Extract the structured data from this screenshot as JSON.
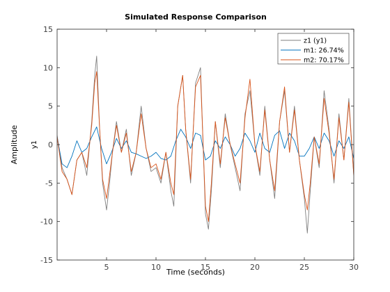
{
  "chart_data": {
    "type": "line",
    "title": "Simulated Response Comparison",
    "xlabel": "Time (seconds)",
    "ylabel": "Amplitude",
    "channel_label": "y1",
    "xlim": [
      0,
      30
    ],
    "ylim": [
      -15,
      15
    ],
    "xticks": [
      5,
      10,
      15,
      20,
      25,
      30
    ],
    "yticks": [
      -15,
      -10,
      -5,
      0,
      5,
      10,
      15
    ],
    "grid": false,
    "legend_position": "top-right",
    "series": [
      {
        "name": "z1 (y1)",
        "color": "#7f7f7f",
        "x": [
          0,
          0.5,
          1,
          1.5,
          2,
          2.5,
          3,
          3.5,
          3.8,
          4,
          4.3,
          4.6,
          5,
          5.3,
          5.6,
          6,
          6.5,
          7,
          7.5,
          8,
          8.5,
          9,
          9.5,
          10,
          10.5,
          11,
          11.5,
          11.8,
          12.2,
          12.7,
          13,
          13.5,
          14,
          14.5,
          15,
          15.3,
          15.6,
          16,
          16.5,
          17,
          17.5,
          18,
          18.5,
          19,
          19.5,
          20,
          20.5,
          21,
          21.5,
          22,
          22.5,
          23,
          23.5,
          24,
          24.5,
          25,
          25.3,
          25.6,
          26,
          26.5,
          27,
          27.5,
          28,
          28.5,
          29,
          29.5,
          30
        ],
        "y": [
          1.2,
          -3,
          -4.5,
          -6.5,
          -2,
          -1,
          -4,
          3,
          9,
          11.5,
          2,
          -5,
          -8.5,
          -5,
          -1,
          3,
          -1,
          2,
          -4,
          -1,
          5,
          -0.5,
          -3.5,
          -3,
          -5,
          -1,
          -6,
          -8,
          5,
          9,
          2,
          -5,
          8,
          10,
          -9,
          -11,
          -6,
          3,
          -3,
          4,
          0,
          -3,
          -6,
          4,
          7,
          0,
          -4,
          5,
          -2,
          -7,
          3,
          7,
          -1,
          5,
          -2,
          -7,
          -11.5,
          -6,
          1,
          -3,
          7,
          2,
          -5,
          4,
          -2,
          6,
          -4
        ]
      },
      {
        "name": "m1: 26.74%",
        "color": "#0072bd",
        "x": [
          0,
          0.5,
          1,
          1.5,
          2,
          2.5,
          3,
          3.5,
          4,
          4.5,
          5,
          5.5,
          6,
          6.5,
          7,
          7.5,
          8,
          8.5,
          9,
          9.5,
          10,
          10.5,
          11,
          11.5,
          12,
          12.5,
          13,
          13.5,
          14,
          14.5,
          15,
          15.5,
          16,
          16.5,
          17,
          17.5,
          18,
          18.5,
          19,
          19.5,
          20,
          20.5,
          21,
          21.5,
          22,
          22.5,
          23,
          23.5,
          24,
          24.5,
          25,
          25.5,
          26,
          26.5,
          27,
          27.5,
          28,
          28.5,
          29,
          29.5,
          30
        ],
        "y": [
          1,
          -2.5,
          -3,
          -1.5,
          0.5,
          -1,
          -0.5,
          1,
          2.3,
          -0.5,
          -2.5,
          -1,
          0.8,
          -0.5,
          0.5,
          -1,
          -1.2,
          -1.5,
          -1.8,
          -1.5,
          -1,
          -1.8,
          -2,
          -1.5,
          0.5,
          2,
          1,
          -0.5,
          1.5,
          1.2,
          -2,
          -1.5,
          0.5,
          -0.5,
          1,
          0,
          -1.5,
          -0.5,
          1.5,
          0.5,
          -1,
          1.5,
          -0.5,
          -1,
          1.2,
          1.8,
          -0.5,
          1.5,
          0.5,
          -1.5,
          -1.5,
          -0.5,
          1,
          -0.5,
          1.5,
          0.5,
          -1.5,
          0.5,
          -0.5,
          1,
          -1.8
        ]
      },
      {
        "name": "m2: 70.17%",
        "color": "#d95319",
        "x": [
          0,
          0.5,
          1,
          1.5,
          2,
          2.5,
          3,
          3.5,
          3.8,
          4,
          4.3,
          4.6,
          5,
          5.3,
          5.6,
          6,
          6.5,
          7,
          7.5,
          8,
          8.5,
          9,
          9.5,
          10,
          10.5,
          11,
          11.5,
          11.8,
          12.2,
          12.7,
          13,
          13.5,
          14,
          14.5,
          15,
          15.3,
          15.6,
          16,
          16.5,
          17,
          17.5,
          18,
          18.5,
          19,
          19.5,
          20,
          20.5,
          21,
          21.5,
          22,
          22.5,
          23,
          23.5,
          24,
          24.5,
          25,
          25.3,
          25.6,
          26,
          26.5,
          27,
          27.5,
          28,
          28.5,
          29,
          29.5,
          30
        ],
        "y": [
          1,
          -3.5,
          -4.5,
          -6.5,
          -2,
          -1,
          -3,
          2.5,
          8,
          9.5,
          2,
          -4.5,
          -7,
          -4,
          -1,
          2.5,
          -1,
          1.5,
          -3.5,
          -1,
          4,
          -0.5,
          -3,
          -2.5,
          -4.5,
          -1,
          -5,
          -6.5,
          5,
          9,
          2,
          -4.5,
          7.5,
          9,
          -8,
          -10,
          -5,
          3,
          -2.5,
          3.5,
          0,
          -2.5,
          -5,
          3.5,
          8.5,
          0,
          -3.5,
          4.5,
          -2,
          -6,
          3,
          7.5,
          -1,
          4.5,
          -2,
          -6.5,
          -8.5,
          -5,
          1,
          -2.5,
          6,
          1.5,
          -4.5,
          3.5,
          -2,
          5.5,
          -4
        ]
      }
    ]
  }
}
